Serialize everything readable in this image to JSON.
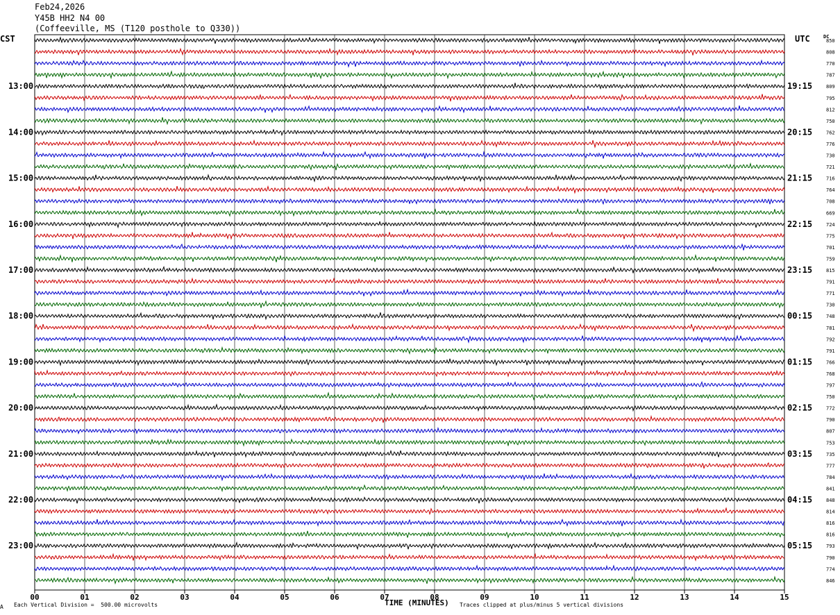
{
  "header": {
    "date": "Feb24,2026",
    "station": "Y45B HH2 N4 00",
    "location": "(Coffeeville, MS (T120 posthole to Q330))"
  },
  "labels": {
    "left_zone": "CST",
    "right_zone": "UTC",
    "dc_header": "DC"
  },
  "chart_data": {
    "type": "line",
    "title": "",
    "xlabel": "TIME (MINUTES)",
    "xlim": [
      0,
      15
    ],
    "x_ticks": [
      "00",
      "01",
      "02",
      "03",
      "04",
      "05",
      "06",
      "07",
      "08",
      "09",
      "10",
      "11",
      "12",
      "13",
      "14",
      "15"
    ],
    "trace_colors": [
      "#000000",
      "#cc0000",
      "#0000cc",
      "#006600"
    ],
    "rows": 48,
    "left_hour_labels": [
      "13:00",
      "14:00",
      "15:00",
      "16:00",
      "17:00",
      "18:00",
      "19:00",
      "20:00",
      "21:00",
      "22:00",
      "23:00"
    ],
    "right_hour_labels": [
      "19:15",
      "20:15",
      "21:15",
      "22:15",
      "23:15",
      "00:15",
      "01:15",
      "02:15",
      "03:15",
      "04:15",
      "05:15"
    ],
    "dc_offsets": [
      "850",
      "808",
      "770",
      "787",
      "809",
      "795",
      "812",
      "750",
      "762",
      "776",
      "730",
      "721",
      "716",
      "764",
      "708",
      "669",
      "724",
      "775",
      "701",
      "759",
      "815",
      "791",
      "771",
      "730",
      "748",
      "781",
      "792",
      "791",
      "766",
      "768",
      "797",
      "750",
      "772",
      "790",
      "807",
      "753",
      "735",
      "777",
      "784",
      "841",
      "848",
      "814",
      "816",
      "816",
      "793",
      "790",
      "774",
      "846"
    ]
  },
  "footer": {
    "scale": "Each Vertical Division =  500.00 microvolts",
    "clip": "Traces clipped at plus/minus 5 vertical divisions",
    "corner": "A"
  }
}
